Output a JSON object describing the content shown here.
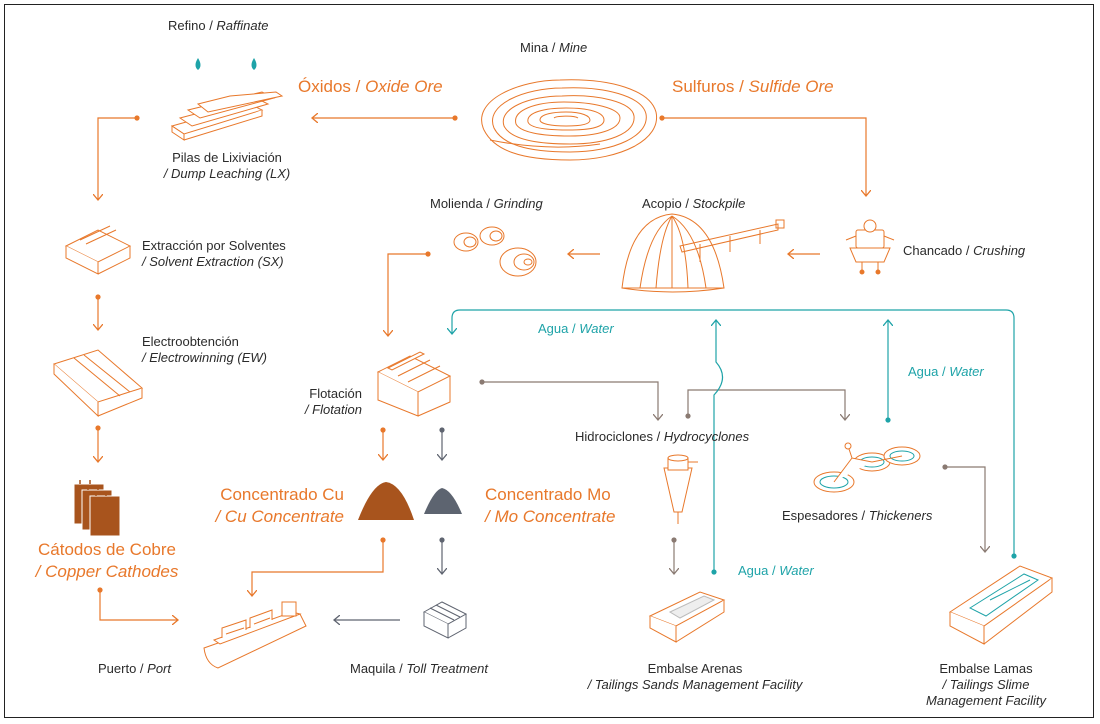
{
  "labels": {
    "raffinate": {
      "es": "Refino",
      "en": "Raffinate"
    },
    "mine": {
      "es": "Mina",
      "en": "Mine"
    },
    "oxide": {
      "es": "Óxidos",
      "en": "Oxide Ore"
    },
    "sulfide": {
      "es": "Sulfuros",
      "en": "Sulfide Ore"
    },
    "dump_leaching": {
      "es": "Pilas de Lixiviación",
      "en": "/ Dump Leaching (LX)"
    },
    "grinding": {
      "es": "Molienda",
      "en": "Grinding"
    },
    "stockpile": {
      "es": "Acopio",
      "en": "Stockpile"
    },
    "crushing": {
      "es": "Chancado",
      "en": "Crushing"
    },
    "solvent": {
      "es": "Extracción por Solventes",
      "en": "/ Solvent Extraction (SX)"
    },
    "electrowinning": {
      "es": "Electroobtención",
      "en": "/ Electrowinning (EW)"
    },
    "flotation": {
      "es": "Flotación",
      "en": "/ Flotation"
    },
    "water_top": {
      "es": "Agua",
      "en": "Water"
    },
    "water_right": {
      "es": "Agua",
      "en": "Water"
    },
    "water_bottom": {
      "es": "Agua",
      "en": "Water"
    },
    "hydrocyclones": {
      "es": "Hidrociclones",
      "en": "Hydrocyclones"
    },
    "thickeners": {
      "es": "Espesadores",
      "en": "Thickeners"
    },
    "cu_conc": {
      "es": "Concentrado Cu",
      "en": "/ Cu Concentrate"
    },
    "mo_conc": {
      "es": "Concentrado Mo",
      "en": "/ Mo Concentrate"
    },
    "cathodes": {
      "es": "Cátodos de Cobre",
      "en": "/ Copper Cathodes"
    },
    "port": {
      "es": "Puerto",
      "en": "Port"
    },
    "toll": {
      "es": "Maquila",
      "en": "Toll Treatment"
    },
    "tailings_sands": {
      "es": "Embalse Arenas",
      "en": "/ Tailings Sands Management Facility"
    },
    "tailings_slime": {
      "es": "Embalse Lamas",
      "en1": "/ Tailings Slime",
      "en2": "Management Facility"
    }
  },
  "colors": {
    "orange": "#e8782b",
    "teal": "#1ea3a8",
    "gray_arrow": "#8a7a72",
    "slate": "#5f6470",
    "cu_pile": "#a8541d",
    "mo_pile": "#5d6470"
  }
}
